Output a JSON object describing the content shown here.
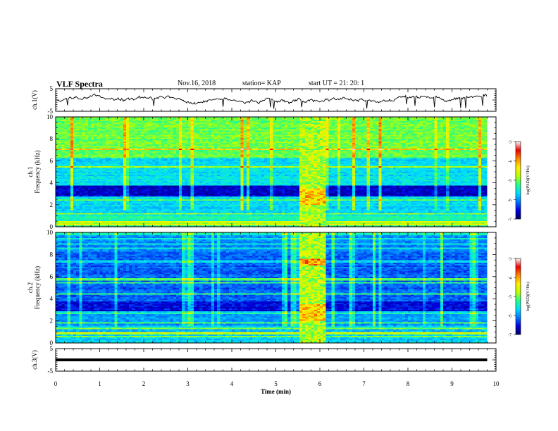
{
  "header": {
    "title": "VLF Spectra",
    "date": "Nov.16, 2018",
    "station": "station= KAP",
    "start_ut": "start  UT =   21: 20: 1"
  },
  "chart_data": {
    "type": "heatmap",
    "title": "VLF Spectra",
    "x_axis": {
      "label": "Time  (min)",
      "range": [
        0,
        10
      ],
      "ticks": [
        "0",
        "1",
        "2",
        "3",
        "4",
        "5",
        "6",
        "7",
        "8",
        "9",
        "10"
      ]
    },
    "panels": [
      {
        "name": "ch.1(V)",
        "type": "line",
        "ylabel": "ch.1(V)",
        "ylim": [
          -5,
          5
        ],
        "yticks": [
          "5",
          "-5"
        ],
        "note": "waveform hovering near 0 V, data ends at ~9.8 min"
      },
      {
        "name": "ch.1",
        "type": "heatmap",
        "ylabel": "ch.1\nFrequency  (kHz)",
        "ylim": [
          0,
          10
        ],
        "yticks": [
          "0",
          "2",
          "4",
          "6",
          "8",
          "10"
        ],
        "colorbar": {
          "label": "log(PSD)(V²/Hz)",
          "range": [
            -7,
            -3
          ],
          "ticks": [
            "-3",
            "-4",
            "-5",
            "-6",
            "-7"
          ]
        },
        "features": {
          "data_end_min": 9.8,
          "burst_interval_min": [
            5.55,
            6.1
          ],
          "dark_band_khz": [
            2.7,
            3.6
          ],
          "bright_band_khz": [
            6.0,
            10.0
          ]
        }
      },
      {
        "name": "ch.2",
        "type": "heatmap",
        "ylabel": "ch.2\nFrequency  (kHz)",
        "ylim": [
          0,
          10
        ],
        "yticks": [
          "0",
          "2",
          "4",
          "6",
          "8",
          "10"
        ],
        "colorbar": {
          "label": "log(PSD)(V²/Hz)",
          "range": [
            -7,
            -3
          ],
          "ticks": [
            "-3",
            "-4",
            "-5",
            "-6",
            "-7"
          ]
        },
        "features": {
          "data_end_min": 9.8,
          "burst_interval_min": [
            5.55,
            6.1
          ],
          "dark_band_khz": [
            2.7,
            3.6
          ]
        }
      },
      {
        "name": "ch.3(V)",
        "type": "line",
        "ylabel": "ch.3(V)",
        "ylim": [
          -5,
          5
        ],
        "yticks": [
          "5",
          "-5"
        ],
        "note": "flat thick line at ~0 V"
      }
    ]
  },
  "colors": {
    "axis": "#000000",
    "colormap": [
      "#000066",
      "#0000dd",
      "#0077ff",
      "#00ddff",
      "#22ff88",
      "#bbff00",
      "#ffee00",
      "#ff8800",
      "#ee0000",
      "#ffffff"
    ]
  }
}
